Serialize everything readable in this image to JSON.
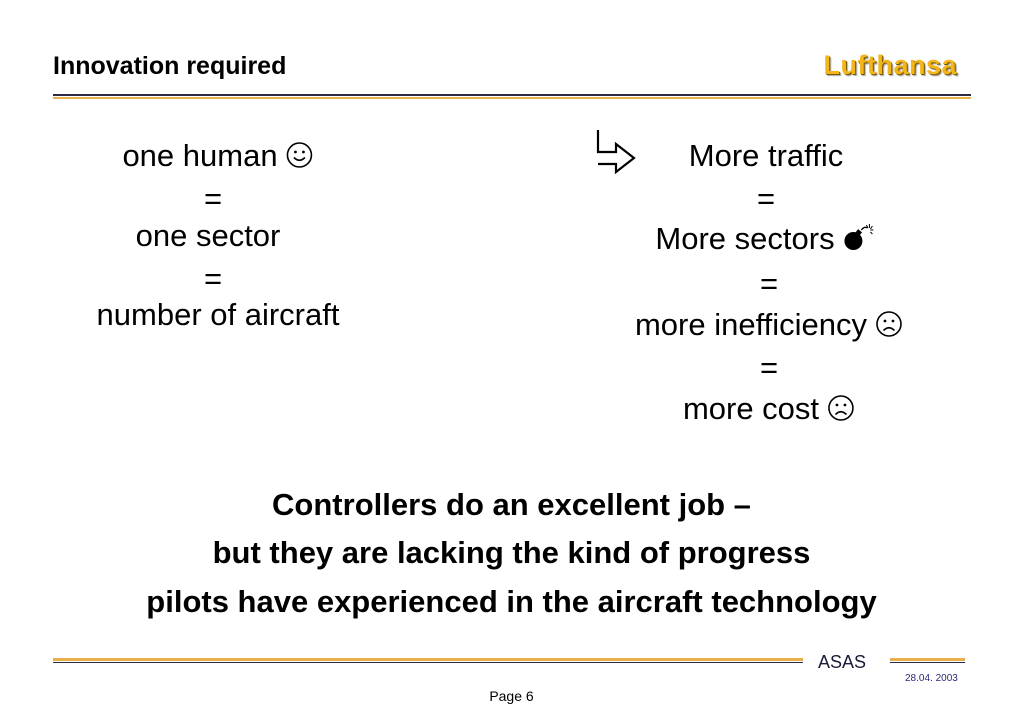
{
  "header": {
    "title": "Innovation required",
    "brand": "Lufthansa"
  },
  "left_chain": {
    "line1": "one human",
    "eq1": "=",
    "line2": "one sector",
    "eq2": "=",
    "line3": "number of aircraft"
  },
  "right_chain": {
    "line1": "More traffic",
    "eq1": "=",
    "line2": "More sectors",
    "eq2": "=",
    "line3": "more inefficiency",
    "eq3": "=",
    "line4": "more cost"
  },
  "icons": {
    "left_line1": "smiley-icon",
    "right_arrow": "arrow-down-right-icon",
    "right_line2": "bomb-icon",
    "right_line3": "frown-icon",
    "right_line4": "frown-icon"
  },
  "takeaway": {
    "line1": "Controllers do an excellent job –",
    "line2": "but they are lacking the kind of progress",
    "line3": "pilots have experienced in the aircraft technology"
  },
  "footer": {
    "label": "ASAS",
    "date": "28.04. 2003",
    "page": "Page 6"
  },
  "colors": {
    "brand": "#f3b519",
    "rule_gold": "#e8b04a",
    "rule_dark": "#2b2b44"
  }
}
